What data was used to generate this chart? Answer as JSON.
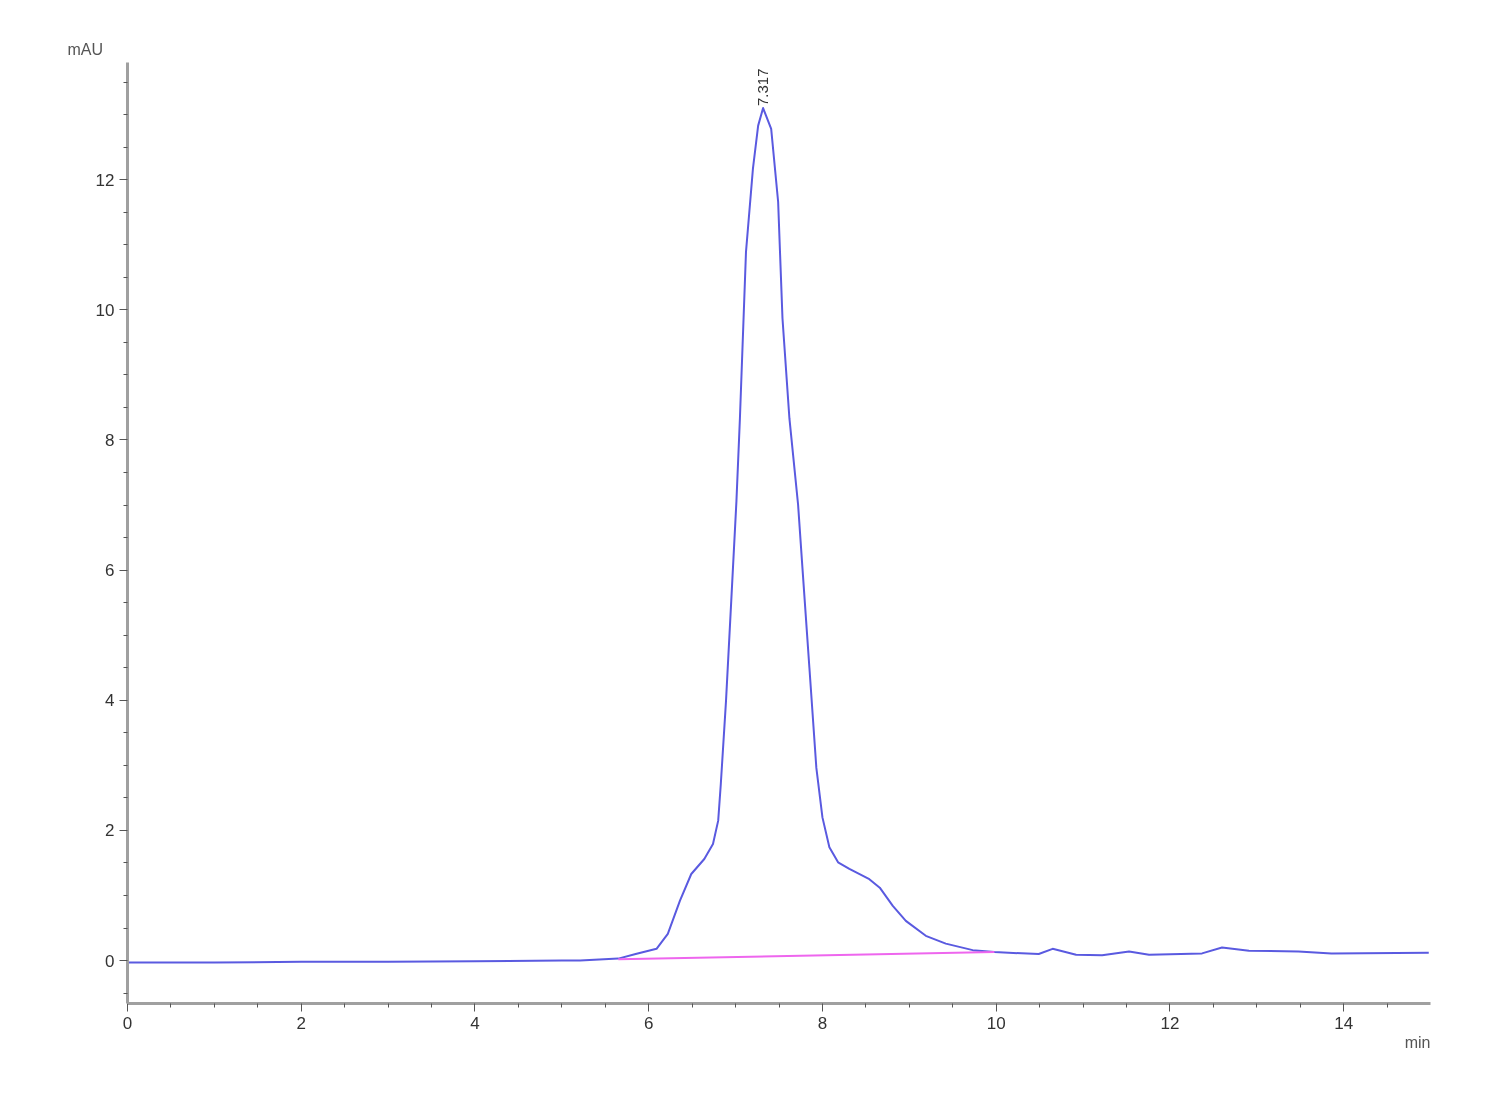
{
  "chart_data": {
    "type": "line",
    "xlabel": "min",
    "ylabel": "mAU",
    "xlim": [
      0,
      15
    ],
    "ylim": [
      -0.66,
      13.8
    ],
    "xticks": [
      0,
      {
        "value": 0.5,
        "label": null
      },
      {
        "value": 1,
        "label": null
      },
      {
        "value": 1.5,
        "label": null
      },
      2,
      {
        "value": 2.5,
        "label": null
      },
      {
        "value": 3,
        "label": null
      },
      {
        "value": 3.5,
        "label": null
      },
      4,
      {
        "value": 4.5,
        "label": null
      },
      {
        "value": 5,
        "label": null
      },
      {
        "value": 5.5,
        "label": null
      },
      6,
      {
        "value": 6.5,
        "label": null
      },
      {
        "value": 7,
        "label": null
      },
      {
        "value": 7.5,
        "label": null
      },
      8,
      {
        "value": 8.5,
        "label": null
      },
      {
        "value": 9,
        "label": null
      },
      {
        "value": 9.5,
        "label": null
      },
      10,
      {
        "value": 10.5,
        "label": null
      },
      {
        "value": 11,
        "label": null
      },
      {
        "value": 11.5,
        "label": null
      },
      12,
      {
        "value": 12.5,
        "label": null
      },
      {
        "value": 13,
        "label": null
      },
      {
        "value": 13.5,
        "label": null
      },
      14,
      {
        "value": 14.5,
        "label": null
      }
    ],
    "yticks": [
      {
        "value": -0.5,
        "label": null
      },
      0,
      {
        "value": 0.5,
        "label": null
      },
      {
        "value": 1,
        "label": null
      },
      {
        "value": 1.5,
        "label": null
      },
      2,
      {
        "value": 2.5,
        "label": null
      },
      {
        "value": 3,
        "label": null
      },
      {
        "value": 3.5,
        "label": null
      },
      4,
      {
        "value": 4.5,
        "label": null
      },
      {
        "value": 5,
        "label": null
      },
      {
        "value": 5.5,
        "label": null
      },
      6,
      {
        "value": 6.5,
        "label": null
      },
      {
        "value": 7,
        "label": null
      },
      {
        "value": 7.5,
        "label": null
      },
      8,
      {
        "value": 8.5,
        "label": null
      },
      {
        "value": 9,
        "label": null
      },
      {
        "value": 9.5,
        "label": null
      },
      10,
      {
        "value": 10.5,
        "label": null
      },
      {
        "value": 11,
        "label": null
      },
      {
        "value": 11.5,
        "label": null
      },
      12,
      {
        "value": 12.5,
        "label": null
      },
      {
        "value": 13,
        "label": null
      },
      {
        "value": 13.5,
        "label": null
      }
    ],
    "grid": false,
    "marker": "none",
    "line_style": "solid",
    "series": [
      {
        "color": "#5a5ae0",
        "x": [
          0,
          1,
          2,
          3,
          4,
          5,
          5.21,
          5.65,
          5.85,
          6.09,
          6.22,
          6.36,
          6.49,
          6.64,
          6.74,
          6.8,
          6.83,
          6.89,
          6.95,
          7.01,
          7.05,
          7.12,
          7.2,
          7.26,
          7.317,
          7.41,
          7.49,
          7.54,
          7.62,
          7.72,
          7.77,
          7.85,
          7.93,
          8.0,
          8.08,
          8.18,
          8.31,
          8.54,
          8.66,
          8.81,
          8.96,
          9.19,
          9.42,
          9.73,
          9.98,
          10.49,
          10.65,
          10.92,
          11.22,
          11.53,
          11.76,
          12.37,
          12.6,
          12.91,
          13.48,
          13.86,
          14.98
        ],
        "values": [
          -0.03,
          -0.03,
          -0.02,
          -0.02,
          -0.01,
          0.0,
          0.0,
          0.03,
          0.1,
          0.18,
          0.41,
          0.92,
          1.33,
          1.56,
          1.79,
          2.15,
          2.71,
          3.99,
          5.52,
          7.06,
          8.33,
          10.89,
          12.17,
          12.83,
          13.1,
          12.78,
          11.66,
          9.87,
          8.33,
          7.0,
          6.03,
          4.5,
          2.96,
          2.2,
          1.74,
          1.51,
          1.41,
          1.25,
          1.12,
          0.84,
          0.61,
          0.38,
          0.26,
          0.16,
          0.13,
          0.1,
          0.18,
          0.09,
          0.08,
          0.14,
          0.09,
          0.11,
          0.2,
          0.15,
          0.14,
          0.11,
          0.12
        ]
      },
      {
        "color": "#ee66ee",
        "x": [
          5.65,
          9.98
        ],
        "values": [
          0.02,
          0.13
        ]
      }
    ],
    "annotations": [
      {
        "text": "7.317",
        "x": 7.317,
        "y": 13.1
      }
    ]
  }
}
